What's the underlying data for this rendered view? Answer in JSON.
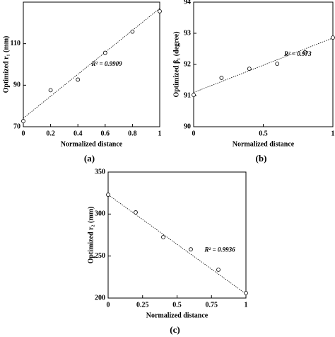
{
  "chart_data": [
    {
      "type": "scatter",
      "panel_label": "(a)",
      "x_label": "Normalized distance",
      "y_label": "Optimized r₁ (mm)",
      "x": [
        0,
        0.2,
        0.4,
        0.6,
        0.8,
        1
      ],
      "values": [
        72.7,
        87.6,
        92.7,
        105.6,
        115.8,
        125.6
      ],
      "fit_line": {
        "x": [
          0,
          1
        ],
        "y": [
          74.1,
          127
        ]
      },
      "annotation": "R² = 0.9909",
      "xlim": [
        0,
        1
      ],
      "ylim": [
        70,
        130
      ],
      "xticks": [
        0,
        0.2,
        0.4,
        0.6,
        0.8,
        1
      ],
      "yticks": [
        70,
        90,
        110
      ]
    },
    {
      "type": "scatter",
      "panel_label": "(b)",
      "x_label": "Normalized distance",
      "y_label": "Optimized β₁ (degree)",
      "x": [
        0,
        0.2,
        0.4,
        0.6,
        0.8,
        1
      ],
      "values": [
        91.02,
        91.57,
        91.86,
        92.02,
        92.39,
        92.86
      ],
      "fit_line": {
        "x": [
          0,
          1
        ],
        "y": [
          91.1,
          92.85
        ]
      },
      "annotation": "R² = 0.973",
      "xlim": [
        0,
        1
      ],
      "ylim": [
        90,
        94
      ],
      "xticks": [
        0,
        0.5,
        1
      ],
      "yticks": [
        90,
        91,
        92,
        93,
        94
      ]
    },
    {
      "type": "scatter",
      "panel_label": "(c)",
      "x_label": "Normalized distance",
      "y_label": "Optimized r₂ (mm)",
      "x": [
        0,
        0.2,
        0.4,
        0.6,
        0.8,
        1
      ],
      "values": [
        323,
        302,
        272.5,
        258,
        233.7,
        206
      ],
      "fit_line": {
        "x": [
          0,
          1
        ],
        "y": [
          323,
          205
        ]
      },
      "annotation": "R² = 0.9936",
      "xlim": [
        0,
        1
      ],
      "ylim": [
        200,
        350
      ],
      "xticks": [
        0,
        0.25,
        0.5,
        0.75,
        1
      ],
      "yticks": [
        200,
        250,
        300,
        350
      ]
    }
  ]
}
